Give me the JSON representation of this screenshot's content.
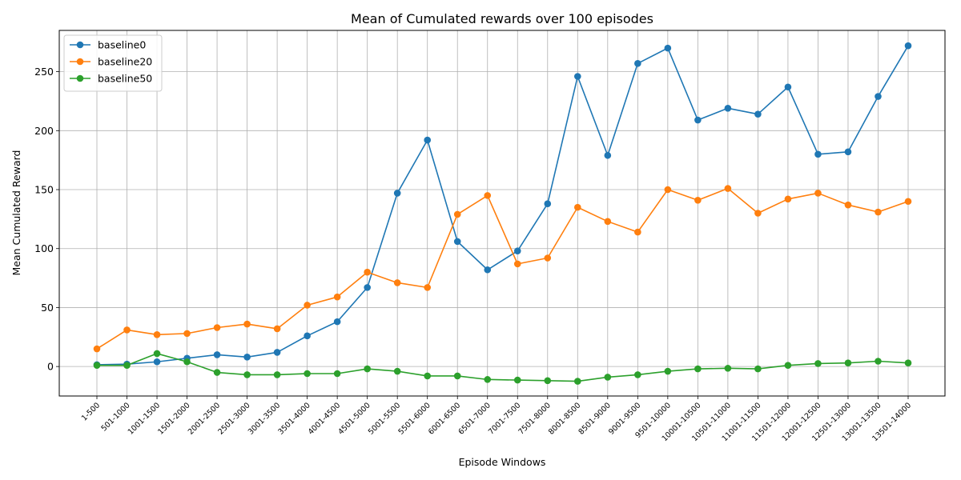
{
  "chart_data": {
    "type": "line",
    "title": "Mean of Cumulated rewards over 100 episodes",
    "xlabel": "Episode Windows",
    "ylabel": "Mean Cumulated Reward",
    "ylim": [
      -25,
      285
    ],
    "yticks": [
      0,
      50,
      100,
      150,
      200,
      250
    ],
    "grid": true,
    "legend_position": "top-left",
    "categories": [
      "1-500",
      "501-1000",
      "1001-1500",
      "1501-2000",
      "2001-2500",
      "2501-3000",
      "3001-3500",
      "3501-4000",
      "4001-4500",
      "4501-5000",
      "5001-5500",
      "5501-6000",
      "6001-6500",
      "6501-7000",
      "7001-7500",
      "7501-8000",
      "8001-8500",
      "8501-9000",
      "9001-9500",
      "9501-10000",
      "10001-10500",
      "10501-11000",
      "11001-11500",
      "11501-12000",
      "12001-12500",
      "12501-13000",
      "13001-13500",
      "13501-14000"
    ],
    "series": [
      {
        "name": "baseline0",
        "color": "#1f77b4",
        "values": [
          1.5,
          2,
          4,
          7,
          10,
          8,
          12,
          26,
          38,
          67,
          147,
          192,
          106,
          82,
          98,
          138,
          246,
          179,
          257,
          270,
          209,
          219,
          214,
          237,
          180,
          182,
          229,
          272
        ]
      },
      {
        "name": "baseline20",
        "color": "#ff7f0e",
        "values": [
          15,
          31,
          27,
          28,
          33,
          36,
          32,
          52,
          59,
          80,
          71,
          67,
          129,
          145,
          87,
          92,
          135,
          123,
          114,
          150,
          141,
          151,
          130,
          142,
          147,
          137,
          131,
          140
        ]
      },
      {
        "name": "baseline50",
        "color": "#2ca02c",
        "values": [
          1,
          1,
          11,
          4,
          -5,
          -7,
          -7,
          -6,
          -6,
          -2,
          -4,
          -8,
          -8,
          -11,
          -11.5,
          -12,
          -12.5,
          -9,
          -7,
          -4,
          -2,
          -1.5,
          -2,
          1,
          2.5,
          3,
          4.5,
          3
        ]
      }
    ]
  }
}
